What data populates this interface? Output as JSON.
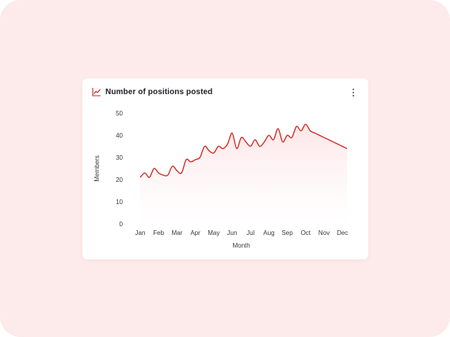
{
  "card": {
    "title": "Number of positions posted",
    "title_icon": "line-chart-icon",
    "menu_icon": "more-vertical-icon"
  },
  "colors": {
    "background": "#fdeaea",
    "line": "#d0241f",
    "area_fill": "#fde8ea",
    "icon": "#d0241f"
  },
  "chart_data": {
    "type": "line",
    "title": "Number of positions posted",
    "xlabel": "Month",
    "ylabel": "Members",
    "categories": [
      "Jan",
      "Feb",
      "Mar",
      "Apr",
      "May",
      "Jun",
      "Jul",
      "Aug",
      "Sep",
      "Oct",
      "Nov",
      "Dec"
    ],
    "yticks": [
      0,
      10,
      20,
      30,
      40,
      50
    ],
    "ylim": [
      0,
      50
    ],
    "grid": false,
    "area_fill": true,
    "series": [
      {
        "x": [
          0.0,
          0.25,
          0.5,
          0.75,
          1.0,
          1.25,
          1.5,
          1.75,
          2.0,
          2.25,
          2.5,
          2.75,
          3.0,
          3.25,
          3.5,
          3.75,
          4.0,
          4.25,
          4.5,
          4.75,
          5.0,
          5.25,
          5.5,
          5.75,
          6.0,
          6.25,
          6.5,
          6.75,
          7.0,
          7.25,
          7.5,
          7.75,
          8.0,
          8.25,
          8.5,
          8.75,
          9.0,
          9.25,
          9.5,
          9.75,
          10.0,
          10.25,
          10.5,
          10.75,
          11.0,
          11.25
        ],
        "values": [
          21,
          23,
          21,
          25,
          23,
          22,
          22,
          26,
          24,
          23,
          29,
          28,
          29,
          30,
          35,
          33,
          32,
          35,
          34,
          36,
          41,
          34,
          39,
          37,
          35,
          38,
          35,
          37,
          40,
          38,
          43,
          37,
          40,
          39,
          44,
          42,
          45,
          42,
          41,
          40,
          39,
          38,
          37,
          36,
          35,
          34
        ]
      }
    ]
  }
}
